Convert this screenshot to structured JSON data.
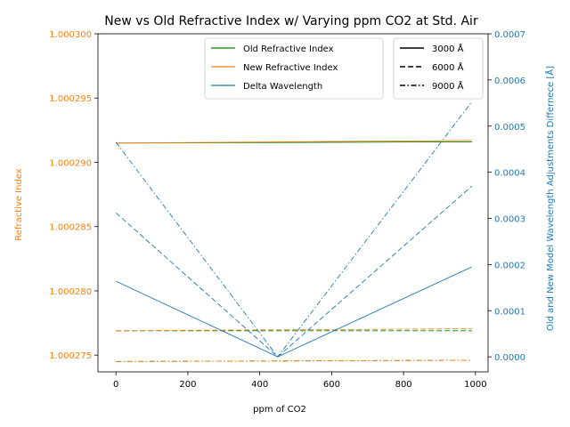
{
  "chart_data": {
    "type": "line",
    "title": "New vs Old Refractive Index w/ Varying ppm CO2 at Std. Air",
    "xlabel": "ppm of CO2",
    "ylabel_left": "Refractive Index",
    "ylabel_right": "Old and New Model Wavelength Adjustments Differnece [Å]",
    "xlim": [
      -50,
      1035
    ],
    "ylim_left": [
      1.0002737,
      1.0003
    ],
    "ylim_right": [
      -3.25e-05,
      0.0007
    ],
    "x_ticks": [
      0,
      200,
      400,
      600,
      800,
      1000
    ],
    "x_tick_labels": [
      "0",
      "200",
      "400",
      "600",
      "800",
      "1000"
    ],
    "y_left_ticks": [
      1.000275,
      1.00028,
      1.000285,
      1.00029,
      1.000295,
      1.0003
    ],
    "y_left_tick_labels": [
      "1.000275",
      "1.000280",
      "1.000285",
      "1.000290",
      "1.000295",
      "1.000300"
    ],
    "y_right_ticks": [
      0,
      0.0001,
      0.0002,
      0.0003,
      0.0004,
      0.0005,
      0.0006,
      0.0007
    ],
    "y_right_tick_labels": [
      "0.0000",
      "0.0001",
      "0.0002",
      "0.0003",
      "0.0004",
      "0.0005",
      "0.0006",
      "0.0007"
    ],
    "colors": {
      "old_index": "#008000",
      "new_index": "#ff7f0e",
      "delta": "#1f77b4",
      "left_axis": "#ff7f0e",
      "right_axis": "#1f77b4",
      "black": "#000000"
    },
    "series": [
      {
        "name": "Old Refractive Index",
        "axis": "left",
        "color_key": "old_index",
        "wavelength": "3000 Å",
        "x": [
          0,
          990
        ],
        "y": [
          1.0002915,
          1.0002916
        ]
      },
      {
        "name": "New Refractive Index",
        "axis": "left",
        "color_key": "new_index",
        "wavelength": "3000 Å",
        "x": [
          0,
          990
        ],
        "y": [
          1.0002915,
          1.0002917
        ]
      },
      {
        "name": "Old Refractive Index",
        "axis": "left",
        "color_key": "old_index",
        "wavelength": "6000 Å",
        "x": [
          0,
          990
        ],
        "y": [
          1.0002769,
          1.0002769
        ]
      },
      {
        "name": "New Refractive Index",
        "axis": "left",
        "color_key": "new_index",
        "wavelength": "6000 Å",
        "x": [
          0,
          990
        ],
        "y": [
          1.0002769,
          1.00027705
        ]
      },
      {
        "name": "Old Refractive Index",
        "axis": "left",
        "color_key": "old_index",
        "wavelength": "9000 Å",
        "x": [
          0,
          990
        ],
        "y": [
          1.0002745,
          1.0002746
        ]
      },
      {
        "name": "New Refractive Index",
        "axis": "left",
        "color_key": "new_index",
        "wavelength": "9000 Å",
        "x": [
          0,
          990
        ],
        "y": [
          1.0002745,
          1.0002746
        ]
      },
      {
        "name": "Delta Wavelength",
        "axis": "right",
        "color_key": "delta",
        "wavelength": "3000 Å",
        "x": [
          0,
          450,
          990
        ],
        "y": [
          0.000164,
          0.0,
          0.000195
        ]
      },
      {
        "name": "Delta Wavelength",
        "axis": "right",
        "color_key": "delta",
        "wavelength": "6000 Å",
        "x": [
          0,
          450,
          990
        ],
        "y": [
          0.000312,
          0.0,
          0.00037
        ]
      },
      {
        "name": "Delta Wavelength",
        "axis": "right",
        "color_key": "delta",
        "wavelength": "9000 Å",
        "x": [
          0,
          450,
          990
        ],
        "y": [
          0.000465,
          0.0,
          0.000553
        ]
      }
    ],
    "legend_main": {
      "placement": "upper-center",
      "entries": [
        {
          "label": "Old Refractive Index",
          "color_key": "old_index"
        },
        {
          "label": "New Refractive Index",
          "color_key": "new_index"
        },
        {
          "label": "Delta Wavelength",
          "color_key": "delta"
        }
      ]
    },
    "legend_style": {
      "placement": "upper-right",
      "entries": [
        {
          "label": "3000 Å",
          "style": "solid"
        },
        {
          "label": "6000 Å",
          "style": "dashed"
        },
        {
          "label": "9000 Å",
          "style": "dashdot"
        }
      ]
    }
  }
}
